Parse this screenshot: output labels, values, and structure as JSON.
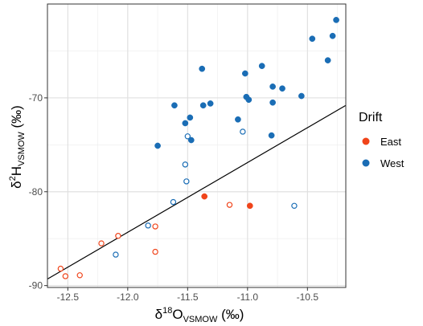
{
  "chart_data": {
    "type": "scatter",
    "xlabel_main": "δ",
    "xlabel_sup": "18",
    "xlabel_base": "O",
    "xlabel_sub": "VSMOW",
    "xlabel_unit": " (‰)",
    "ylabel_main": "δ",
    "ylabel_sup": "2",
    "ylabel_base": "H",
    "ylabel_sub": "VSMOW",
    "ylabel_unit": " (‰)",
    "xlim": [
      -12.67,
      -10.18
    ],
    "ylim": [
      -90.2,
      -60.0
    ],
    "x_ticks": [
      -12.5,
      -12.0,
      -11.5,
      -11.0,
      -10.5
    ],
    "x_tick_labels": [
      "-12.5",
      "-12.0",
      "-11.5",
      "-11.0",
      "-10.5"
    ],
    "y_ticks": [
      -90,
      -80,
      -70
    ],
    "y_tick_labels": [
      "-90",
      "-80",
      "-70"
    ],
    "grid": true,
    "legend": {
      "title": "Drift",
      "position": "right",
      "entries": [
        {
          "label": "East",
          "color": "#F0441A"
        },
        {
          "label": "West",
          "color": "#1A6DB5"
        }
      ]
    },
    "reference_line": {
      "x": [
        -12.67,
        -10.18
      ],
      "y": [
        -89.3,
        -70.8
      ]
    },
    "series": [
      {
        "name": "East",
        "color": "#F0441A",
        "points": [
          {
            "x": -12.56,
            "y": -88.2,
            "filled": false
          },
          {
            "x": -12.52,
            "y": -89.0,
            "filled": false
          },
          {
            "x": -12.4,
            "y": -88.9,
            "filled": false
          },
          {
            "x": -12.22,
            "y": -85.5,
            "filled": false
          },
          {
            "x": -12.08,
            "y": -84.7,
            "filled": false
          },
          {
            "x": -11.77,
            "y": -83.7,
            "filled": false
          },
          {
            "x": -11.77,
            "y": -86.4,
            "filled": false
          },
          {
            "x": -11.36,
            "y": -80.5,
            "filled": true
          },
          {
            "x": -11.15,
            "y": -81.4,
            "filled": false
          },
          {
            "x": -10.98,
            "y": -81.5,
            "filled": true
          }
        ]
      },
      {
        "name": "West",
        "color": "#1A6DB5",
        "points": [
          {
            "x": -12.1,
            "y": -86.7,
            "filled": false
          },
          {
            "x": -11.83,
            "y": -83.6,
            "filled": false
          },
          {
            "x": -11.62,
            "y": -81.1,
            "filled": false
          },
          {
            "x": -11.51,
            "y": -78.9,
            "filled": false
          },
          {
            "x": -11.52,
            "y": -77.1,
            "filled": false
          },
          {
            "x": -11.75,
            "y": -75.1,
            "filled": true
          },
          {
            "x": -11.5,
            "y": -74.1,
            "filled": false
          },
          {
            "x": -11.47,
            "y": -74.5,
            "filled": true
          },
          {
            "x": -11.52,
            "y": -72.7,
            "filled": true
          },
          {
            "x": -11.48,
            "y": -72.1,
            "filled": true
          },
          {
            "x": -11.61,
            "y": -70.8,
            "filled": true
          },
          {
            "x": -11.37,
            "y": -70.8,
            "filled": true
          },
          {
            "x": -11.31,
            "y": -70.6,
            "filled": true
          },
          {
            "x": -11.38,
            "y": -66.9,
            "filled": true
          },
          {
            "x": -11.08,
            "y": -72.3,
            "filled": true
          },
          {
            "x": -11.04,
            "y": -73.6,
            "filled": false
          },
          {
            "x": -11.02,
            "y": -67.4,
            "filled": true
          },
          {
            "x": -11.01,
            "y": -69.9,
            "filled": true
          },
          {
            "x": -10.99,
            "y": -70.2,
            "filled": true
          },
          {
            "x": -10.88,
            "y": -66.6,
            "filled": true
          },
          {
            "x": -10.79,
            "y": -68.8,
            "filled": true
          },
          {
            "x": -10.79,
            "y": -70.5,
            "filled": true
          },
          {
            "x": -10.8,
            "y": -74.0,
            "filled": true
          },
          {
            "x": -10.71,
            "y": -69.0,
            "filled": true
          },
          {
            "x": -10.61,
            "y": -81.5,
            "filled": false
          },
          {
            "x": -10.55,
            "y": -69.8,
            "filled": true
          },
          {
            "x": -10.46,
            "y": -63.7,
            "filled": true
          },
          {
            "x": -10.33,
            "y": -66.0,
            "filled": true
          },
          {
            "x": -10.29,
            "y": -63.4,
            "filled": true
          },
          {
            "x": -10.26,
            "y": -61.7,
            "filled": true
          }
        ]
      }
    ]
  }
}
